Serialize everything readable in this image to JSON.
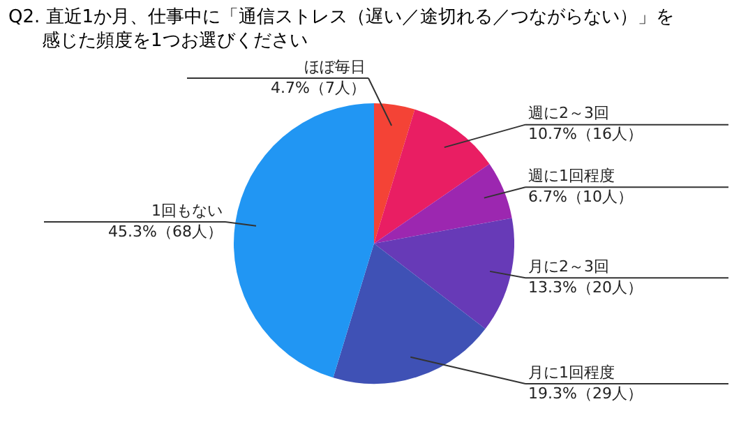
{
  "chart_data": {
    "type": "pie",
    "title": "Q2. 直近1か月、仕事中に「通信ストレス（遅い／途切れる／つながらない）」を感じた頻度を1つお選びください",
    "categories": [
      "ほぼ毎日",
      "週に2～3回",
      "週に1回程度",
      "月に2～3回",
      "月に1回程度",
      "1回もない"
    ],
    "values": [
      4.7,
      10.7,
      6.7,
      13.3,
      19.3,
      45.3
    ],
    "value_labels": [
      "4.7%（7人）",
      "10.7%（16人）",
      "6.7%（10人）",
      "13.3%（20人）",
      "19.3%（29人）",
      "45.3%（68人）"
    ],
    "colors": [
      "#f44336",
      "#e91e63",
      "#9c27b0",
      "#673ab7",
      "#3f51b5",
      "#2196f3"
    ],
    "legend": false
  }
}
